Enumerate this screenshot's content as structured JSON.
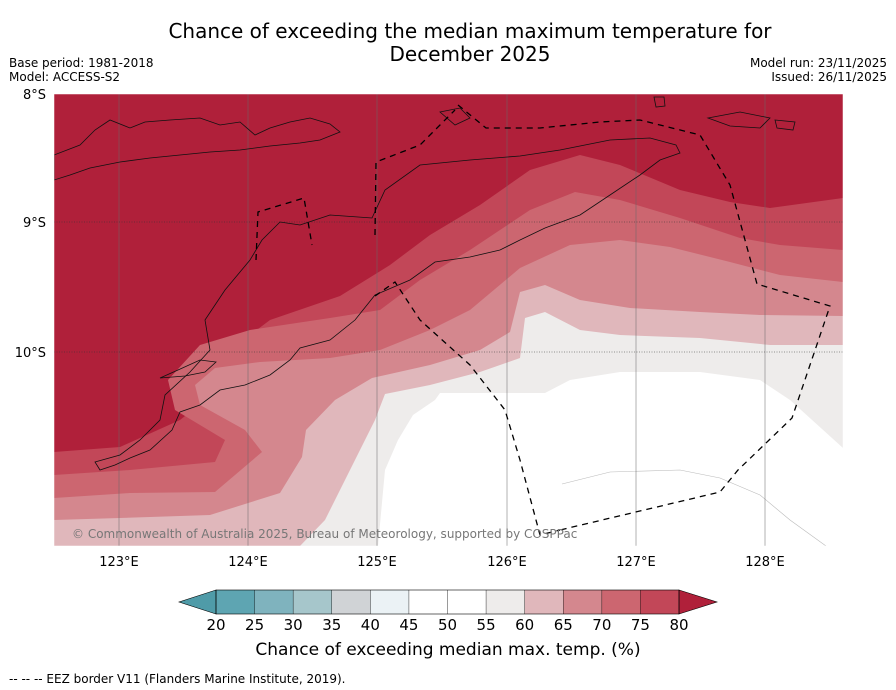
{
  "title": {
    "line1": "Chance of exceeding the median maximum temperature for",
    "line2": "December 2025"
  },
  "meta": {
    "base_period": "Base period: 1981-2018",
    "model": "Model: ACCESS-S2",
    "model_run": "Model run: 23/11/2025",
    "issued": "Issued: 26/11/2025"
  },
  "map": {
    "lat_labels": [
      "8°S",
      "9°S",
      "10°S"
    ],
    "lon_labels": [
      "123°E",
      "124°E",
      "125°E",
      "126°E",
      "127°E",
      "128°E"
    ],
    "copyright": "© Commonwealth of Australia 2025, Bureau of Meteorology, supported by COSPPac",
    "colors": {
      "c_gt80": "#b0203a",
      "c_75_80": "#c24758",
      "c_70_75": "#cc6670",
      "c_65_70": "#d4878e",
      "c_60_65": "#e0b7bb",
      "c_55_60": "#eeeceb",
      "c_45_55": "#ffffff"
    }
  },
  "colorbar": {
    "ticks": [
      "20",
      "25",
      "30",
      "35",
      "40",
      "45",
      "50",
      "55",
      "60",
      "65",
      "70",
      "75",
      "80"
    ],
    "colors": [
      "#5ea5b2",
      "#7fb3be",
      "#a6c6cb",
      "#d0d3d6",
      "#ebf2f5",
      "#ffffff",
      "#ffffff",
      "#eeeceb",
      "#e0b7bb",
      "#d4878e",
      "#cc6670",
      "#c24758"
    ],
    "low_color": "#4f9ba8",
    "high_color": "#b0203a",
    "label": "Chance of exceeding median max. temp. (%)"
  },
  "footer": {
    "eez_note": "--  --  -- EEZ border V11 (Flanders Marine Institute, 2019)."
  }
}
